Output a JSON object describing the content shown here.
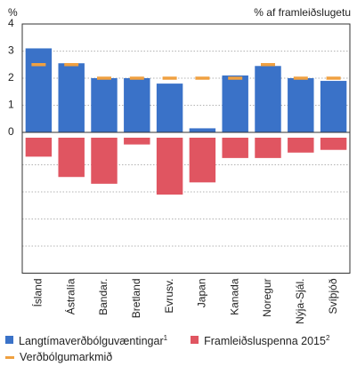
{
  "chart_data": {
    "type": "bar",
    "title": "",
    "ylabel_left": "%",
    "ylabel_right": "% af framleiðslugetu",
    "yticks": [
      "4",
      "3",
      "2",
      "1",
      "0"
    ],
    "ylim_upper": [
      0,
      4
    ],
    "ylim_lower": [
      -5,
      0
    ],
    "grid": true,
    "categories": [
      "Ísland",
      "Ástralía",
      "Bandar.",
      "Bretland",
      "Evrusv.",
      "Japan",
      "Kanada",
      "Noregur",
      "Nýja-Sjál.",
      "Svíþjóð"
    ],
    "series": [
      {
        "name": "Langtímaverðbólguvæntingar",
        "name_sup": "1",
        "color": "#3a72c8",
        "panel": "upper",
        "values": [
          3.1,
          2.55,
          2.0,
          2.0,
          1.8,
          0.15,
          2.1,
          2.45,
          2.0,
          1.9
        ]
      },
      {
        "name": "Framleiðsluspenna 2015",
        "name_sup": "2",
        "color": "#e05561",
        "panel": "lower",
        "values": [
          -0.7,
          -1.45,
          -1.7,
          -0.25,
          -2.1,
          -1.65,
          -0.75,
          -0.75,
          -0.55,
          -0.45
        ]
      },
      {
        "name": "Verðbólgumarkmið",
        "color": "#f0a040",
        "panel": "upper",
        "type": "marker",
        "values": [
          2.5,
          2.5,
          2.0,
          2.0,
          2.0,
          2.0,
          2.0,
          2.5,
          2.0,
          2.0
        ]
      }
    ]
  }
}
